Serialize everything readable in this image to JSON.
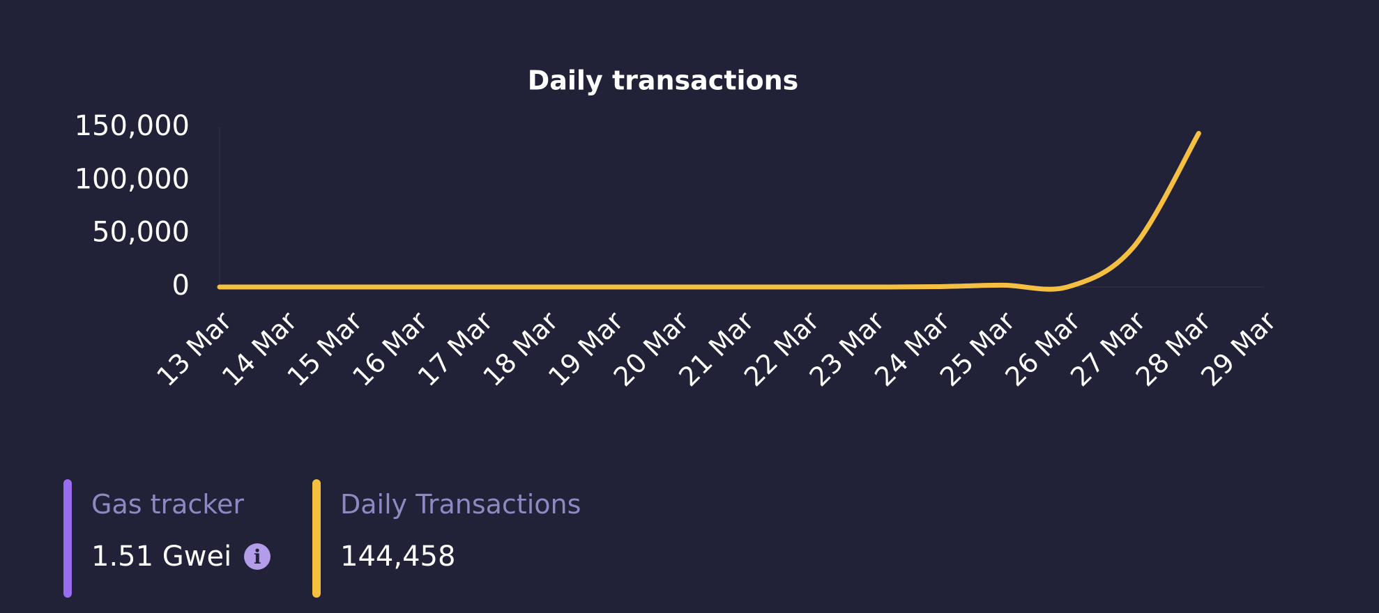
{
  "chart_data": {
    "type": "line",
    "title": "Daily transactions",
    "categories": [
      "13 Mar",
      "14 Mar",
      "15 Mar",
      "16 Mar",
      "17 Mar",
      "18 Mar",
      "19 Mar",
      "20 Mar",
      "21 Mar",
      "22 Mar",
      "23 Mar",
      "24 Mar",
      "25 Mar",
      "26 Mar",
      "27 Mar",
      "28 Mar",
      "29 Mar"
    ],
    "series": [
      {
        "name": "Daily transactions",
        "color": "#f5c042",
        "values": [
          0,
          0,
          0,
          0,
          0,
          0,
          0,
          0,
          0,
          0,
          0,
          300,
          1700,
          200,
          37500,
          144458,
          null
        ]
      }
    ],
    "ylim": [
      0,
      150000
    ],
    "yticks": [
      0,
      {
        "value": 50000,
        "label": "50,000"
      },
      {
        "value": 100000,
        "label": "100,000"
      },
      {
        "value": 150000,
        "label": "150,000"
      }
    ]
  },
  "stats": [
    {
      "label": "Gas tracker",
      "value": "1.51 Gwei",
      "color": "#9a6cf0"
    },
    {
      "label": "Daily Transactions",
      "value": "144,458",
      "color": "#f5c042"
    }
  ]
}
